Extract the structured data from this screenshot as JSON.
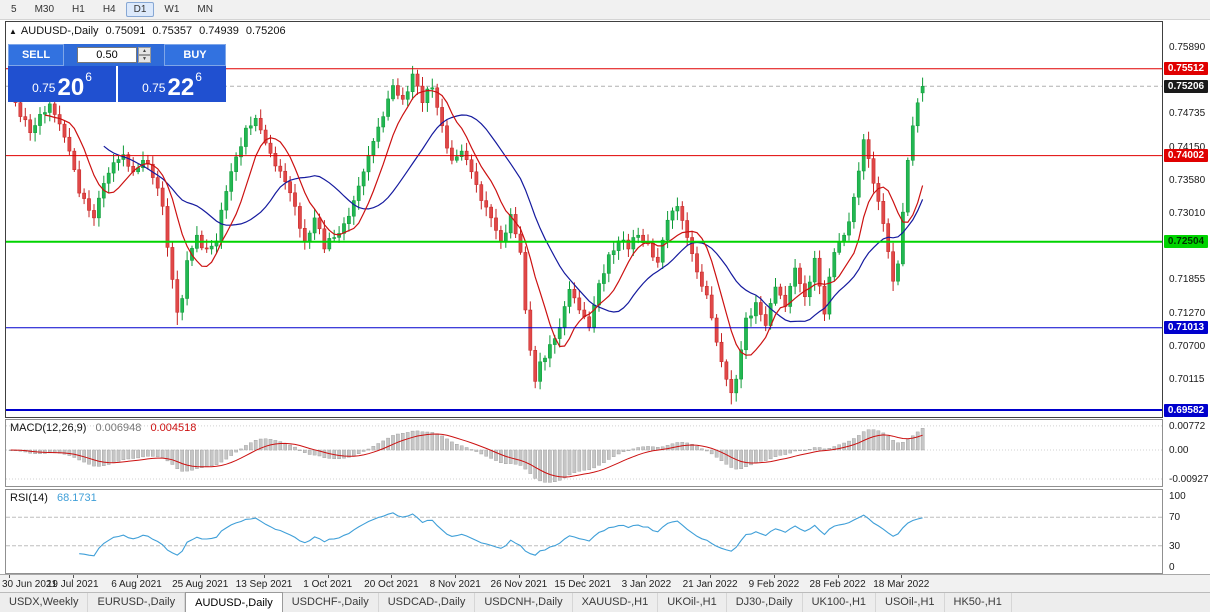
{
  "toolbar": {
    "timeframes": [
      {
        "label": "5",
        "active": false
      },
      {
        "label": "M30",
        "active": false
      },
      {
        "label": "H1",
        "active": false
      },
      {
        "label": "H4",
        "active": false
      },
      {
        "label": "D1",
        "active": true
      },
      {
        "label": "W1",
        "active": false
      },
      {
        "label": "MN",
        "active": false
      }
    ]
  },
  "chart": {
    "marker": "▲",
    "symbol": "AUDUSD-,Daily",
    "open": "0.75091",
    "high": "0.75357",
    "low": "0.74939",
    "close": "0.75206",
    "axis_ticks": [
      "0.75890",
      "0.74735",
      "0.74150",
      "0.73580",
      "0.73010",
      "0.71855",
      "0.71270",
      "0.70700",
      "0.70115"
    ],
    "price_tags": [
      {
        "text": "0.75512",
        "bg": "#e00000",
        "fg": "#ffffff"
      },
      {
        "text": "0.75206",
        "bg": "#1a1a1a",
        "fg": "#ffffff"
      },
      {
        "text": "0.74002",
        "bg": "#e00000",
        "fg": "#ffffff"
      },
      {
        "text": "0.72504",
        "bg": "#00d400",
        "fg": "#003300"
      },
      {
        "text": "0.71013",
        "bg": "#0000cd",
        "fg": "#ffffff"
      },
      {
        "text": "0.69582",
        "bg": "#0000cd",
        "fg": "#ffffff"
      }
    ]
  },
  "trade": {
    "sell_label": "SELL",
    "buy_label": "BUY",
    "volume": "0.50",
    "spin_up": "▲",
    "spin_down": "▼",
    "sell_price": {
      "base": "0.75",
      "pips": "20",
      "pipette": "6"
    },
    "buy_price": {
      "base": "0.75",
      "pips": "22",
      "pipette": "6"
    }
  },
  "macd": {
    "label": "MACD(12,26,9)",
    "main_value": "0.006948",
    "signal_value": "0.004518",
    "axis": [
      "0.00772",
      "0.00",
      "-0.00927"
    ]
  },
  "rsi": {
    "label": "RSI(14)",
    "value": "68.1731",
    "axis": [
      "100",
      "70",
      "30",
      "0"
    ]
  },
  "tabs": [
    {
      "label": "USDX,Weekly",
      "active": false
    },
    {
      "label": "EURUSD-,Daily",
      "active": false
    },
    {
      "label": "AUDUSD-,Daily",
      "active": true
    },
    {
      "label": "USDCHF-,Daily",
      "active": false
    },
    {
      "label": "USDCAD-,Daily",
      "active": false
    },
    {
      "label": "USDCNH-,Daily",
      "active": false
    },
    {
      "label": "XAUUSD-,H1",
      "active": false
    },
    {
      "label": "UKOil-,H1",
      "active": false
    },
    {
      "label": "DJ30-,Daily",
      "active": false
    },
    {
      "label": "UK100-,H1",
      "active": false
    },
    {
      "label": "USOil-,H1",
      "active": false
    },
    {
      "label": "HK50-,H1",
      "active": false
    }
  ],
  "chart_data": {
    "type": "candlestick",
    "symbol": "AUDUSD",
    "timeframe": "Daily",
    "days": 187,
    "x_step": 4.903,
    "x_offset": 3,
    "y_range": [
      0.69461,
      0.76323
    ],
    "ohlc_today": {
      "open": 0.75091,
      "high": 0.75357,
      "low": 0.74939,
      "close": 0.75206
    },
    "price_path": [
      [
        0,
        0.7502
      ],
      [
        2,
        0.7468
      ],
      [
        4,
        0.744
      ],
      [
        6,
        0.7472
      ],
      [
        8,
        0.749
      ],
      [
        10,
        0.7455
      ],
      [
        12,
        0.7408
      ],
      [
        14,
        0.7335
      ],
      [
        16,
        0.7305
      ],
      [
        17,
        0.7292
      ],
      [
        19,
        0.7352
      ],
      [
        21,
        0.7388
      ],
      [
        23,
        0.7402
      ],
      [
        25,
        0.7372
      ],
      [
        27,
        0.7392
      ],
      [
        29,
        0.7362
      ],
      [
        31,
        0.7312
      ],
      [
        33,
        0.7185
      ],
      [
        34,
        0.7128
      ],
      [
        35,
        0.7152
      ],
      [
        36,
        0.7218
      ],
      [
        38,
        0.7262
      ],
      [
        40,
        0.7238
      ],
      [
        42,
        0.7252
      ],
      [
        44,
        0.7338
      ],
      [
        46,
        0.7398
      ],
      [
        48,
        0.7448
      ],
      [
        50,
        0.7465
      ],
      [
        52,
        0.7422
      ],
      [
        54,
        0.7382
      ],
      [
        56,
        0.7355
      ],
      [
        58,
        0.7312
      ],
      [
        60,
        0.7252
      ],
      [
        62,
        0.7292
      ],
      [
        64,
        0.7238
      ],
      [
        66,
        0.7258
      ],
      [
        68,
        0.7282
      ],
      [
        70,
        0.7322
      ],
      [
        72,
        0.7372
      ],
      [
        74,
        0.7425
      ],
      [
        76,
        0.7468
      ],
      [
        78,
        0.7522
      ],
      [
        80,
        0.7498
      ],
      [
        82,
        0.7542
      ],
      [
        84,
        0.7492
      ],
      [
        86,
        0.7518
      ],
      [
        88,
        0.7452
      ],
      [
        90,
        0.7392
      ],
      [
        92,
        0.7408
      ],
      [
        94,
        0.7372
      ],
      [
        96,
        0.7322
      ],
      [
        98,
        0.7292
      ],
      [
        100,
        0.7252
      ],
      [
        102,
        0.7298
      ],
      [
        104,
        0.7232
      ],
      [
        105,
        0.7132
      ],
      [
        106,
        0.7062
      ],
      [
        107,
        0.7008
      ],
      [
        108,
        0.7042
      ],
      [
        110,
        0.7072
      ],
      [
        112,
        0.7102
      ],
      [
        114,
        0.7168
      ],
      [
        116,
        0.7132
      ],
      [
        118,
        0.7102
      ],
      [
        120,
        0.7178
      ],
      [
        122,
        0.7228
      ],
      [
        124,
        0.7252
      ],
      [
        126,
        0.7238
      ],
      [
        128,
        0.7262
      ],
      [
        130,
        0.7248
      ],
      [
        132,
        0.7215
      ],
      [
        134,
        0.7288
      ],
      [
        136,
        0.7312
      ],
      [
        138,
        0.7258
      ],
      [
        140,
        0.7198
      ],
      [
        142,
        0.7158
      ],
      [
        143,
        0.7118
      ],
      [
        145,
        0.7042
      ],
      [
        147,
        0.6988
      ],
      [
        148,
        0.7012
      ],
      [
        150,
        0.7118
      ],
      [
        152,
        0.7145
      ],
      [
        154,
        0.7105
      ],
      [
        156,
        0.7172
      ],
      [
        158,
        0.7138
      ],
      [
        160,
        0.7205
      ],
      [
        162,
        0.7155
      ],
      [
        164,
        0.7222
      ],
      [
        166,
        0.7125
      ],
      [
        168,
        0.7232
      ],
      [
        170,
        0.7262
      ],
      [
        172,
        0.7328
      ],
      [
        174,
        0.7428
      ],
      [
        176,
        0.7352
      ],
      [
        178,
        0.7282
      ],
      [
        180,
        0.7182
      ],
      [
        181,
        0.7212
      ],
      [
        182,
        0.7302
      ],
      [
        183,
        0.7392
      ],
      [
        184,
        0.7452
      ],
      [
        185,
        0.7492
      ],
      [
        186,
        0.75206
      ]
    ],
    "wick_overrides": {
      "34": {
        "low": 0.7106
      },
      "82": {
        "high": 0.7556
      },
      "147": {
        "low": 0.6968
      },
      "180": {
        "low": 0.7165
      }
    },
    "ma_fast": 8,
    "ma_slow": 20,
    "levels": [
      {
        "price": 0.75512,
        "color": "#e00000",
        "width": 1
      },
      {
        "price": 0.74002,
        "color": "#e00000",
        "width": 1
      },
      {
        "price": 0.72504,
        "color": "#00d400",
        "width": 2
      },
      {
        "price": 0.71013,
        "color": "#0000cd",
        "width": 1
      },
      {
        "price": 0.69582,
        "color": "#0000cd",
        "width": 2
      }
    ],
    "colors": {
      "up": "#0d9a37",
      "up_fill": "#22b752",
      "down": "#c52222",
      "down_fill": "#e04848",
      "ma_fast": "#cc1111",
      "ma_slow": "#151a9e",
      "macd_hist": "#c6c6c6",
      "macd_hist_edge": "#9a9a9a",
      "macd_signal": "#cc1111",
      "rsi_line": "#3f9fd8"
    },
    "macd_scale": {
      "top": 0.0096,
      "bottom": -0.0115,
      "main_last": 0.006948,
      "signal_last": 0.004518,
      "gridlines": [
        0.00772,
        0,
        -0.00927
      ]
    },
    "rsi_levels": [
      70,
      30
    ],
    "dates": [
      {
        "day": 0,
        "label": "30 Jun 2021"
      },
      {
        "day": 13,
        "label": "19 Jul 2021"
      },
      {
        "day": 26,
        "label": "6 Aug 2021"
      },
      {
        "day": 39,
        "label": "25 Aug 2021"
      },
      {
        "day": 52,
        "label": "13 Sep 2021"
      },
      {
        "day": 65,
        "label": "1 Oct 2021"
      },
      {
        "day": 78,
        "label": "20 Oct 2021"
      },
      {
        "day": 91,
        "label": "8 Nov 2021"
      },
      {
        "day": 104,
        "label": "26 Nov 2021"
      },
      {
        "day": 117,
        "label": "15 Dec 2021"
      },
      {
        "day": 130,
        "label": "3 Jan 2022"
      },
      {
        "day": 143,
        "label": "21 Jan 2022"
      },
      {
        "day": 156,
        "label": "9 Feb 2022"
      },
      {
        "day": 169,
        "label": "28 Feb 2022"
      },
      {
        "day": 182,
        "label": "18 Mar 2022"
      }
    ]
  }
}
